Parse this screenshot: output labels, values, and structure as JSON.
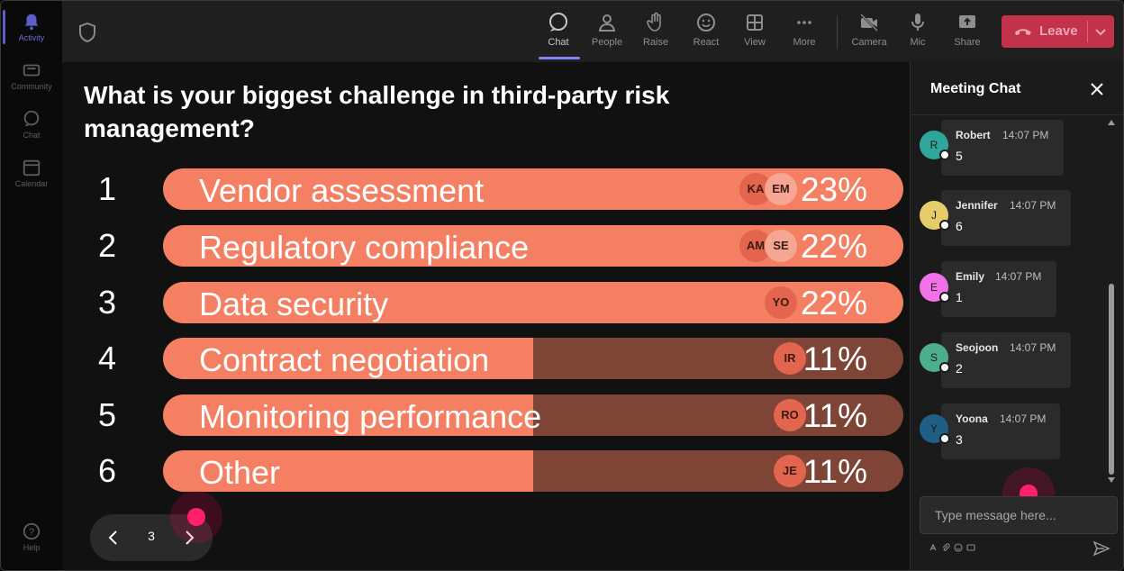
{
  "rail": {
    "items": [
      {
        "label": "Activity",
        "icon": "bell-icon"
      },
      {
        "label": "Community",
        "icon": "community-icon"
      },
      {
        "label": "Chat",
        "icon": "chat-icon"
      },
      {
        "label": "Calendar",
        "icon": "calendar-icon"
      },
      {
        "label": "Help",
        "icon": "help-icon"
      }
    ]
  },
  "toolbar": {
    "buttons": [
      {
        "label": "Chat",
        "icon": "chat-icon"
      },
      {
        "label": "People",
        "icon": "people-icon"
      },
      {
        "label": "Raise",
        "icon": "hand-icon"
      },
      {
        "label": "React",
        "icon": "smiley-icon"
      },
      {
        "label": "View",
        "icon": "grid-icon"
      },
      {
        "label": "More",
        "icon": "more-icon"
      },
      {
        "label": "Camera",
        "icon": "camera-off-icon"
      },
      {
        "label": "Mic",
        "icon": "mic-icon"
      },
      {
        "label": "Share",
        "icon": "share-icon"
      }
    ],
    "leave_label": "Leave"
  },
  "poll": {
    "question": "What is your biggest challenge in third-party risk management?",
    "options": [
      {
        "num": "1",
        "label": "Vendor assessment",
        "pct": "23%",
        "fill": 1.0,
        "avatars": [
          "KA",
          "EM"
        ]
      },
      {
        "num": "2",
        "label": "Regulatory compliance",
        "pct": "22%",
        "fill": 1.0,
        "avatars": [
          "AM",
          "SE"
        ]
      },
      {
        "num": "3",
        "label": "Data security",
        "pct": "22%",
        "fill": 1.0,
        "avatars": [
          "YO"
        ]
      },
      {
        "num": "4",
        "label": "Contract negotiation",
        "pct": "11%",
        "fill": 0.5,
        "avatars": [
          "IR"
        ]
      },
      {
        "num": "5",
        "label": "Monitoring performance",
        "pct": "11%",
        "fill": 0.5,
        "avatars": [
          "RO"
        ]
      },
      {
        "num": "6",
        "label": "Other",
        "pct": "11%",
        "fill": 0.5,
        "avatars": [
          "JE"
        ]
      }
    ]
  },
  "pager": {
    "page": "3"
  },
  "chat": {
    "title": "Meeting Chat",
    "messages": [
      {
        "initial": "R",
        "name": "Robert",
        "time": "14:07 PM",
        "text": "5",
        "color": "#2ea79a"
      },
      {
        "initial": "J",
        "name": "Jennifer",
        "time": "14:07 PM",
        "text": "6",
        "color": "#e6cd6a"
      },
      {
        "initial": "E",
        "name": "Emily",
        "time": "14:07 PM",
        "text": "1",
        "color": "#f172e8"
      },
      {
        "initial": "S",
        "name": "Seojoon",
        "time": "14:07 PM",
        "text": "2",
        "color": "#4cae8c"
      },
      {
        "initial": "Y",
        "name": "Yoona",
        "time": "14:07 PM",
        "text": "3",
        "color": "#1f5f86"
      }
    ],
    "input_placeholder": "Type message here..."
  },
  "colors": {
    "bar_fill": "#f47f62",
    "bar_track": "#7e4536",
    "leave": "#c4314b",
    "accent": "#7f85f5"
  }
}
